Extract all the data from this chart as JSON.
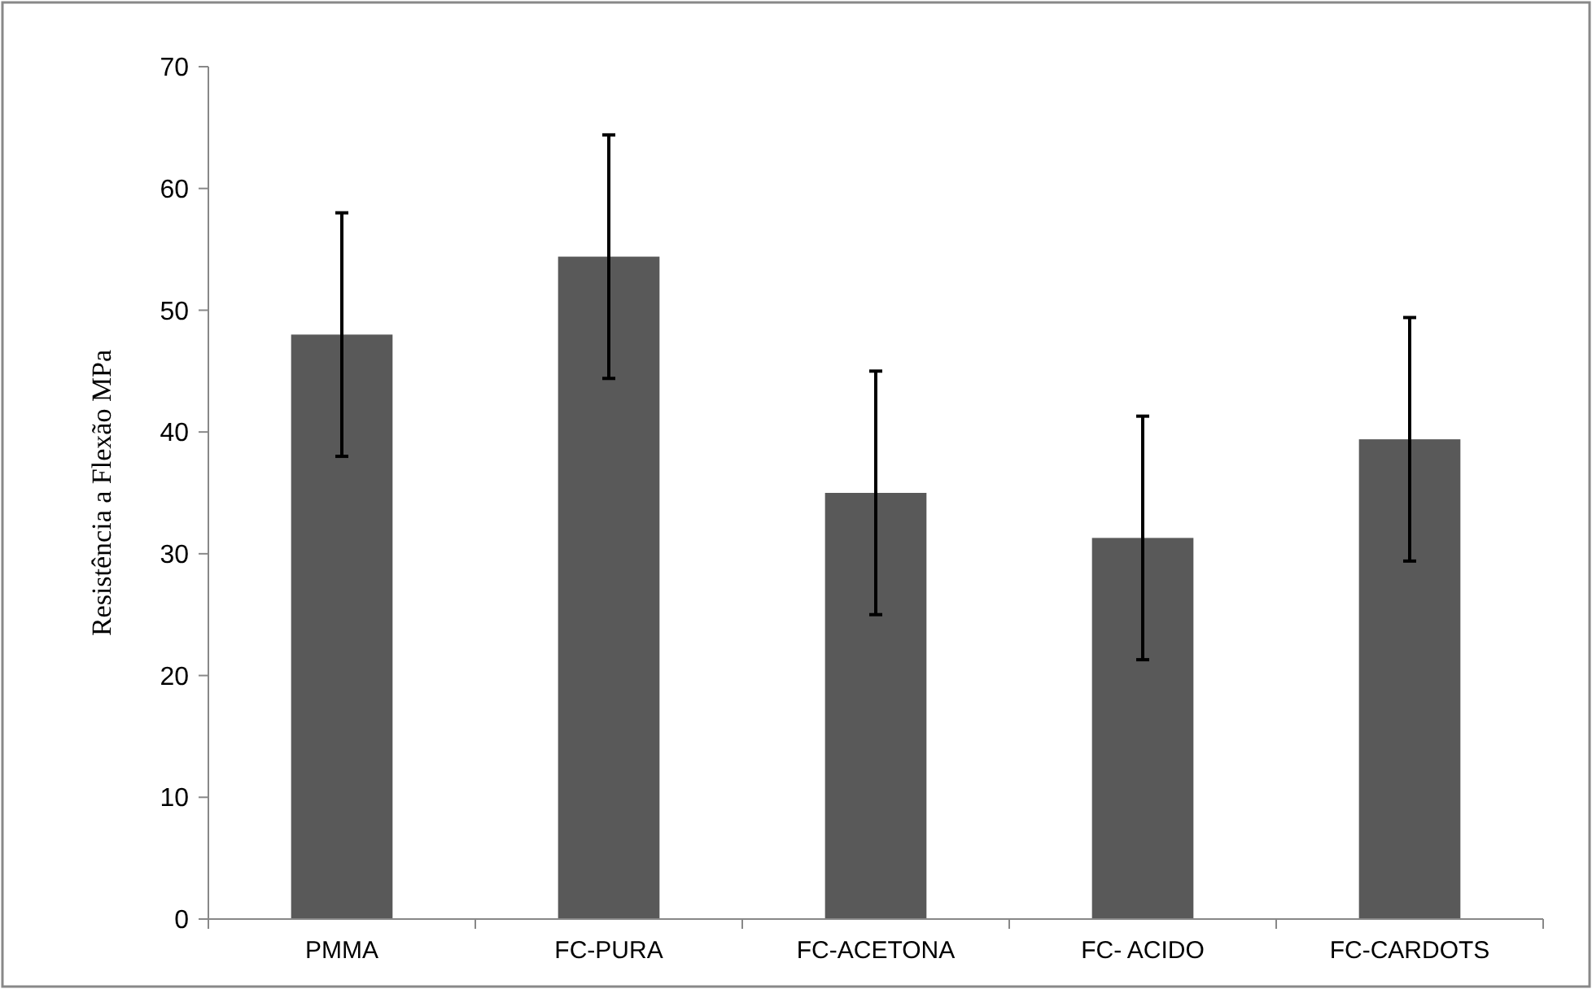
{
  "chart_data": {
    "type": "bar",
    "ylabel": "Resistência a Flexão  MPa",
    "categories": [
      "PMMA",
      "FC-PURA",
      "FC-ACETONA",
      "FC- ACIDO",
      "FC-CARDOTS"
    ],
    "values": [
      48,
      54.4,
      35,
      31.3,
      39.4
    ],
    "errors": [
      10,
      10,
      10,
      10,
      10
    ],
    "color": "#595959",
    "ylim": [
      0,
      70
    ],
    "yticks": [
      0,
      10,
      20,
      30,
      40,
      50,
      60,
      70
    ],
    "grid": false
  }
}
